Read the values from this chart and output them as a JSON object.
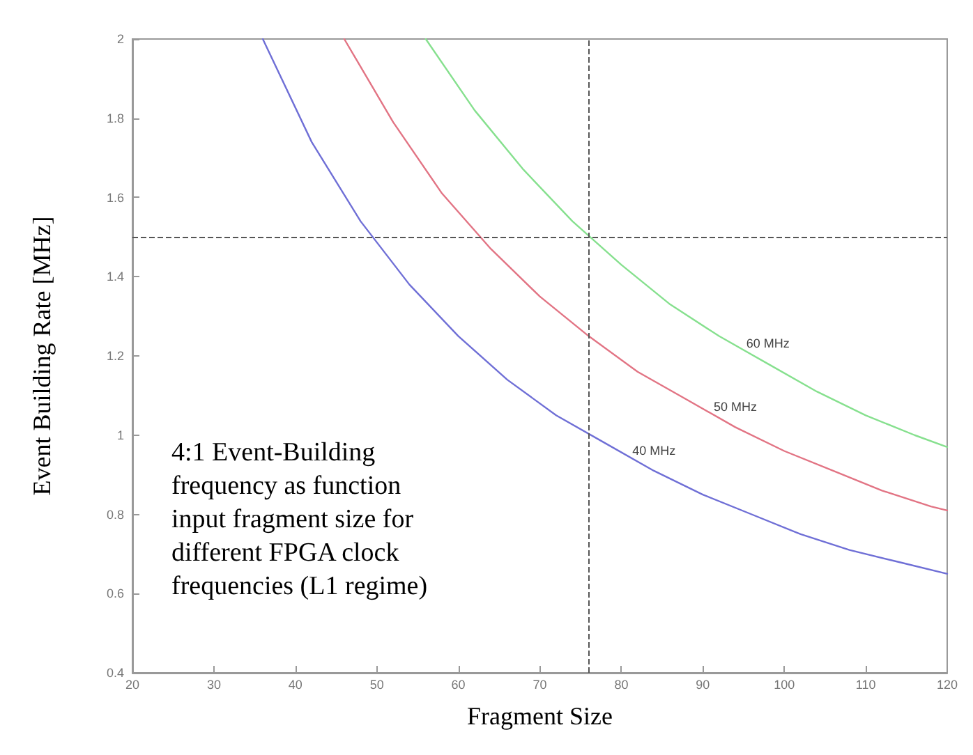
{
  "chart_data": {
    "type": "line",
    "xlabel": "Fragment Size",
    "ylabel": "Event Building Rate [MHz]",
    "xlim": [
      20,
      120
    ],
    "xticks": [
      20,
      30,
      40,
      50,
      60,
      70,
      80,
      90,
      100,
      110,
      120
    ],
    "ylim": [
      0.4,
      2
    ],
    "yticks": [
      0.4,
      0.6,
      0.8,
      1,
      1.2,
      1.4,
      1.6,
      1.8,
      2
    ],
    "marker": "none",
    "line_style": "solid",
    "grid": false,
    "series": [
      {
        "name": "40 MHz",
        "color": "#6f6fd6",
        "x": [
          36,
          42,
          48,
          54,
          60,
          66,
          72,
          78,
          84,
          90,
          96,
          102,
          108,
          114,
          120
        ],
        "values": [
          2.0,
          1.74,
          1.54,
          1.38,
          1.25,
          1.14,
          1.05,
          0.98,
          0.91,
          0.85,
          0.8,
          0.75,
          0.71,
          0.68,
          0.65
        ]
      },
      {
        "name": "50 MHz",
        "color": "#e27484",
        "x": [
          46,
          52,
          58,
          64,
          70,
          76,
          82,
          88,
          94,
          100,
          106,
          112,
          118,
          120
        ],
        "values": [
          2.0,
          1.79,
          1.61,
          1.47,
          1.35,
          1.25,
          1.16,
          1.09,
          1.02,
          0.96,
          0.91,
          0.86,
          0.82,
          0.81
        ]
      },
      {
        "name": "60 MHz",
        "color": "#86e08e",
        "x": [
          56,
          62,
          68,
          74,
          80,
          86,
          92,
          98,
          104,
          110,
          116,
          120
        ],
        "values": [
          2.0,
          1.82,
          1.67,
          1.54,
          1.43,
          1.33,
          1.25,
          1.18,
          1.11,
          1.05,
          1.0,
          0.97
        ]
      }
    ],
    "ref_lines": [
      {
        "axis": "x",
        "value": 76,
        "color": "#555555",
        "line_style": "dashed"
      },
      {
        "axis": "y",
        "value": 1.5,
        "color": "#555555",
        "line_style": "dashed"
      }
    ],
    "annotations": [
      "4:1 Event-Building frequency as function input fragment size for different FPGA clock frequencies (L1 regime)"
    ]
  }
}
